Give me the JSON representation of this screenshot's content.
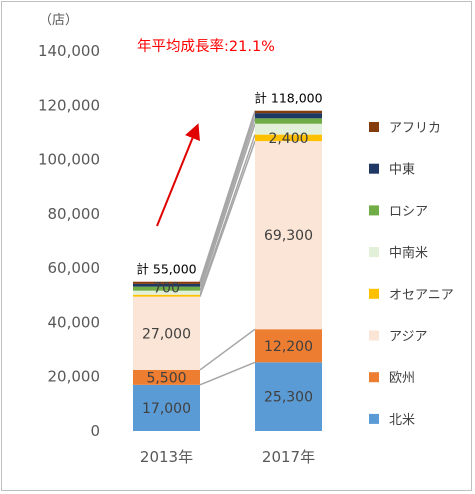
{
  "chart_data": {
    "type": "bar",
    "stacked": true,
    "unit_label": "（店）",
    "categories": [
      "2013年",
      "2017年"
    ],
    "ylim": [
      0,
      140000
    ],
    "yticks": [
      "0",
      "20,000",
      "40,000",
      "60,000",
      "80,000",
      "100,000",
      "120,000",
      "140,000"
    ],
    "series": [
      {
        "name": "北米",
        "color": "#5b9bd5",
        "values": [
          17000,
          25300
        ],
        "labels": [
          "17,000",
          "25,300"
        ]
      },
      {
        "name": "欧州",
        "color": "#ed7d31",
        "values": [
          5500,
          12200
        ],
        "labels": [
          "5,500",
          "12,200"
        ]
      },
      {
        "name": "アジア",
        "color": "#fbe5d6",
        "values": [
          27000,
          69300
        ],
        "labels": [
          "27,000",
          "69,300"
        ]
      },
      {
        "name": "オセアニア",
        "color": "#ffc000",
        "values": [
          700,
          2400
        ],
        "labels": [
          "700",
          "2,400"
        ]
      },
      {
        "name": "中南米",
        "color": "#e2f0d9",
        "values": [
          1500,
          4000
        ],
        "labels": [
          "",
          ""
        ]
      },
      {
        "name": "ロシア",
        "color": "#70ad47",
        "values": [
          1500,
          2000
        ],
        "labels": [
          "",
          ""
        ]
      },
      {
        "name": "中東",
        "color": "#1f3864",
        "values": [
          1000,
          1900
        ],
        "labels": [
          "",
          ""
        ]
      },
      {
        "name": "アフリカ",
        "color": "#843c0c",
        "values": [
          800,
          900
        ],
        "labels": [
          "",
          ""
        ]
      }
    ],
    "totals": [
      "計 55,000",
      "計 118,000"
    ],
    "annotation": {
      "text": "年平均成長率:21.1%",
      "color": "#ff0000"
    },
    "grid": false,
    "legend_position": "right"
  }
}
